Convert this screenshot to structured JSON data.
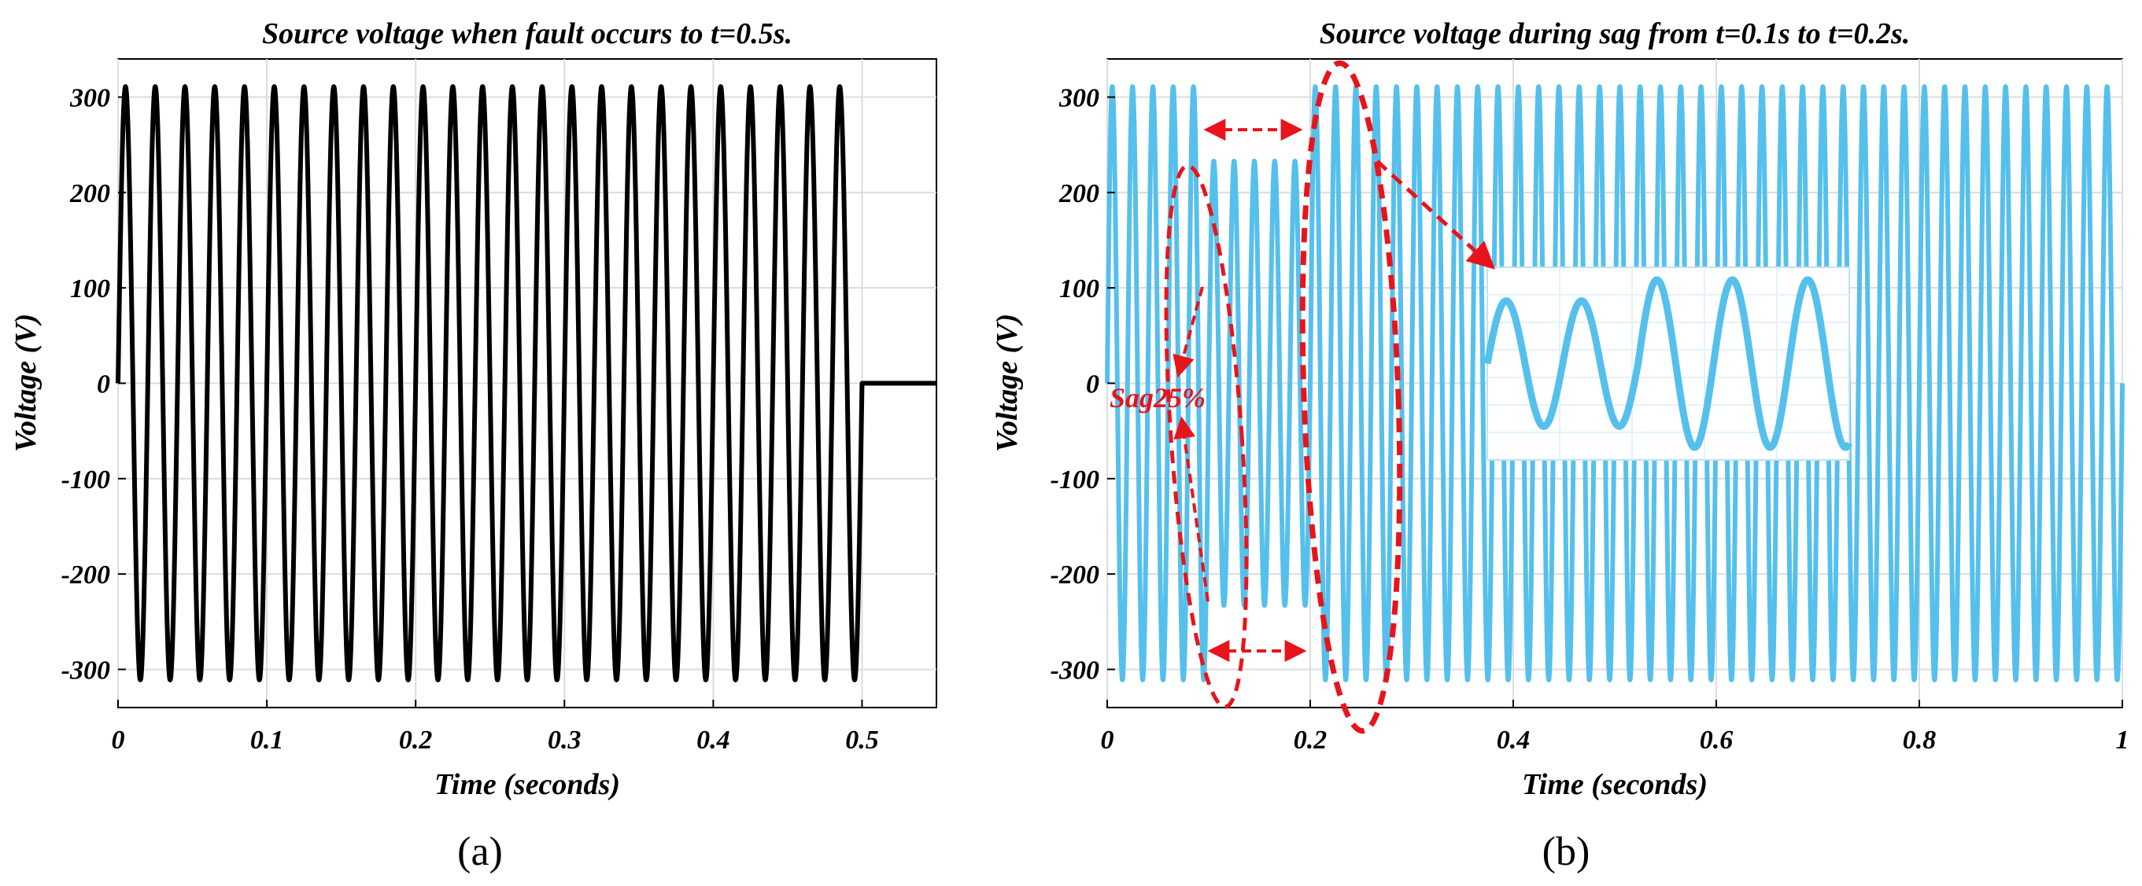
{
  "chart_data": [
    {
      "type": "line",
      "title": "Source voltage when fault occurs to t=0.5s.",
      "xlabel": "Time (seconds)",
      "ylabel": "Voltage (V)",
      "xlim": [
        0,
        0.55
      ],
      "ylim": [
        -340,
        340
      ],
      "xticks": [
        0,
        0.1,
        0.2,
        0.3,
        0.4,
        0.5
      ],
      "xtick_labels": [
        "0",
        "0.1",
        "0.2",
        "0.3",
        "0.4",
        "0.5"
      ],
      "yticks": [
        300,
        200,
        100,
        0,
        -100,
        -200,
        -300
      ],
      "ytick_labels": [
        "300",
        "200",
        "100",
        "0",
        "-100",
        "-200",
        "-300"
      ],
      "grid": true,
      "caption": "(a)",
      "series": [
        {
          "name": "Source voltage",
          "color": "#000000",
          "amplitude": 311,
          "frequency_hz": 50,
          "t_start": 0,
          "t_end": 0.5,
          "value_after_fault": 0
        }
      ]
    },
    {
      "type": "line",
      "title": "Source voltage during sag from t=0.1s to t=0.2s.",
      "xlabel": "Time (seconds)",
      "ylabel": "Voltage (V)",
      "xlim": [
        0,
        1
      ],
      "ylim": [
        -340,
        340
      ],
      "xticks": [
        0,
        0.2,
        0.4,
        0.6,
        0.8,
        1
      ],
      "xtick_labels": [
        "0",
        "0.2",
        "0.4",
        "0.6",
        "0.8",
        "1"
      ],
      "yticks": [
        300,
        200,
        100,
        0,
        -100,
        -200,
        -300
      ],
      "ytick_labels": [
        "300",
        "200",
        "100",
        "0",
        "-100",
        "-200",
        "-300"
      ],
      "grid": true,
      "caption": "(b)",
      "annotation": "Sag25%",
      "series": [
        {
          "name": "Source voltage",
          "color": "#56c0ec",
          "amplitude": 311,
          "frequency_hz": 50,
          "sag_start": 0.1,
          "sag_end": 0.2,
          "sag_amplitude": 233
        }
      ],
      "inset": {
        "description": "zoom of sag transition",
        "color": "#56c0ec"
      }
    }
  ]
}
